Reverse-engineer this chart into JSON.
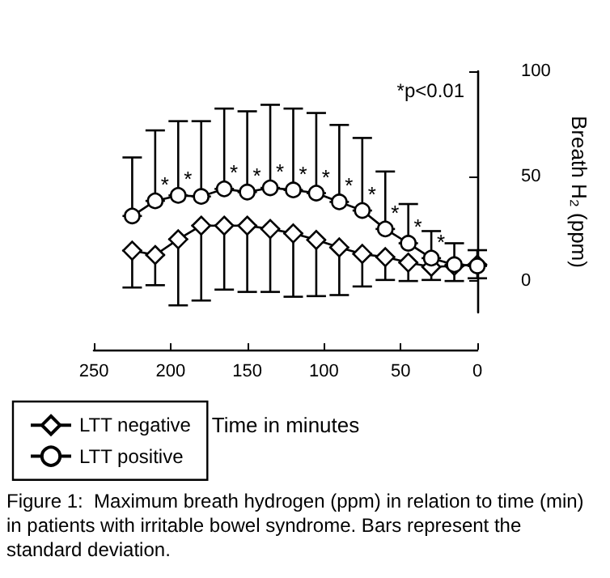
{
  "chart_data": {
    "type": "line",
    "xlabel": "Time in minutes",
    "ylabel": "Breath H₂ (ppm)",
    "x": [
      0,
      15,
      30,
      45,
      60,
      75,
      90,
      105,
      120,
      135,
      150,
      165,
      180,
      195,
      210,
      225
    ],
    "series": [
      {
        "name": "LTT negative",
        "color": "#000000",
        "marker": "diamond",
        "values": [
          7.8,
          7.2,
          6.7,
          8.8,
          11.4,
          12.9,
          16,
          19.6,
          22.7,
          24.8,
          26.4,
          26.4,
          26.4,
          19.9,
          12.4,
          14.5
        ],
        "errors": [
          [
            1.3,
            7.8
          ],
          [
            0,
            7.2
          ],
          [
            0.5,
            6.7
          ],
          [
            0,
            8.8
          ],
          [
            0.5,
            11.4
          ],
          [
            -2.6,
            12.9
          ],
          [
            -6.7,
            16
          ],
          [
            -7.2,
            19.6
          ],
          [
            -7.5,
            22.7
          ],
          [
            -5.2,
            24.8
          ],
          [
            -5.2,
            26.4
          ],
          [
            -4.1,
            26.4
          ],
          [
            -9.3,
            26.4
          ],
          [
            -11.6,
            19.9
          ],
          [
            -2,
            12.4
          ],
          [
            -3.1,
            14.5
          ]
        ]
      },
      {
        "name": "LTT positive",
        "color": "#000000",
        "marker": "circle",
        "value_labels": [
          null,
          null,
          "*",
          "*",
          "*",
          "*",
          "*",
          "*",
          "*",
          "*",
          "*",
          "*",
          null,
          "*",
          "*",
          null
        ],
        "values": [
          7.2,
          7.8,
          10.9,
          18,
          24.8,
          33.6,
          37.7,
          41.9,
          43.4,
          44.4,
          42.4,
          43.9,
          40.3,
          40.8,
          38.2,
          31
        ],
        "errors": [
          [
            7.2,
            14.7
          ],
          [
            7.8,
            18
          ],
          [
            10.9,
            23.8
          ],
          [
            18,
            36.7
          ],
          [
            24.8,
            52.2
          ],
          [
            33.6,
            68.2
          ],
          [
            37.7,
            74.4
          ],
          [
            41.9,
            80.1
          ],
          [
            43.4,
            82.2
          ],
          [
            44.4,
            84
          ],
          [
            42.4,
            80.9
          ],
          [
            43.9,
            82.2
          ],
          [
            40.3,
            76.2
          ],
          [
            40.8,
            76.2
          ],
          [
            38.2,
            71.8
          ],
          [
            31,
            58.9
          ]
        ]
      }
    ],
    "xlim": [
      250,
      0
    ],
    "xticks": [
      0,
      50,
      100,
      150,
      200,
      250
    ],
    "ylim": [
      -15,
      100
    ],
    "yticks": [
      0,
      50,
      100
    ],
    "grid": false,
    "legend": "bottom left",
    "line_style": "solid",
    "annotations": [
      "*p<0.01",
      "Figure 1:  Maximum breath hydrogen (ppm) in relation to time (min) in patients with irritable bowel syndrome. Bars represent the standard deviation."
    ]
  }
}
